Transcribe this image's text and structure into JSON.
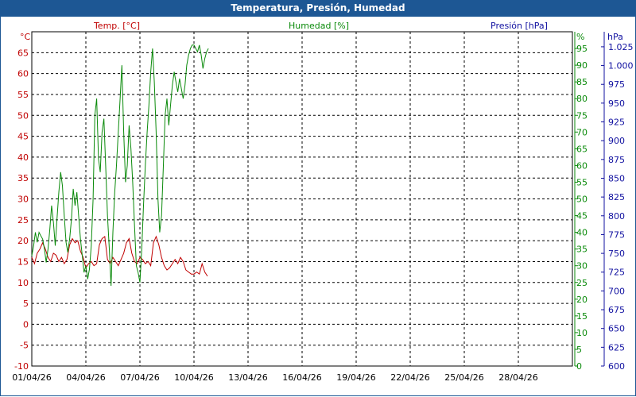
{
  "window": {
    "title": "Temperatura, Presión, Humedad"
  },
  "chart_data": {
    "type": "line",
    "grid": true,
    "x_ticks": [
      "01/04/26",
      "04/04/26",
      "07/04/26",
      "10/04/26",
      "13/04/26",
      "16/04/26",
      "19/04/26",
      "22/04/26",
      "25/04/26",
      "28/04/26"
    ],
    "x_range_days": [
      0,
      30
    ],
    "axes": {
      "temp": {
        "header": "Temp. [°C]",
        "unit": "°C",
        "color": "#c00000",
        "ylim": [
          -10,
          70
        ],
        "ticks": [
          "-10",
          "-5",
          "0",
          "5",
          "10",
          "15",
          "20",
          "25",
          "30",
          "35",
          "40",
          "45",
          "50",
          "55",
          "60",
          "65"
        ]
      },
      "hum": {
        "header": "Humedad [%]",
        "unit": "%",
        "color": "#0a8a0a",
        "ylim": [
          0,
          100
        ],
        "ticks": [
          "0",
          "5",
          "10",
          "15",
          "20",
          "25",
          "30",
          "35",
          "40",
          "45",
          "50",
          "55",
          "60",
          "65",
          "70",
          "75",
          "80",
          "85",
          "90",
          "95"
        ]
      },
      "pres": {
        "header": "Presión [hPa]",
        "unit": "hPa",
        "color": "#1010a0",
        "ylim": [
          600,
          1045
        ],
        "ticks": [
          "600",
          "625",
          "650",
          "675",
          "700",
          "725",
          "750",
          "775",
          "800",
          "825",
          "850",
          "875",
          "900",
          "925",
          "950",
          "975",
          "1.000",
          "1.025"
        ]
      }
    },
    "series": [
      {
        "axis": "temp",
        "color": "#c00000",
        "points": [
          [
            0.0,
            16.0
          ],
          [
            0.15,
            14.5
          ],
          [
            0.3,
            17.0
          ],
          [
            0.45,
            18.0
          ],
          [
            0.6,
            19.5
          ],
          [
            0.75,
            18.0
          ],
          [
            0.9,
            16.0
          ],
          [
            1.05,
            15.0
          ],
          [
            1.2,
            17.0
          ],
          [
            1.35,
            16.5
          ],
          [
            1.5,
            15.0
          ],
          [
            1.65,
            16.0
          ],
          [
            1.8,
            14.5
          ],
          [
            1.95,
            15.5
          ],
          [
            2.1,
            19.0
          ],
          [
            2.25,
            20.5
          ],
          [
            2.4,
            19.5
          ],
          [
            2.55,
            20.0
          ],
          [
            2.7,
            17.5
          ],
          [
            2.85,
            16.0
          ],
          [
            3.0,
            13.5
          ],
          [
            3.15,
            14.5
          ],
          [
            3.3,
            15.0
          ],
          [
            3.45,
            14.0
          ],
          [
            3.6,
            14.5
          ],
          [
            3.75,
            19.0
          ],
          [
            3.9,
            20.5
          ],
          [
            4.05,
            21.0
          ],
          [
            4.2,
            15.5
          ],
          [
            4.35,
            14.5
          ],
          [
            4.5,
            16.0
          ],
          [
            4.65,
            15.0
          ],
          [
            4.8,
            14.0
          ],
          [
            4.95,
            15.5
          ],
          [
            5.1,
            17.0
          ],
          [
            5.25,
            19.5
          ],
          [
            5.4,
            20.5
          ],
          [
            5.55,
            17.0
          ],
          [
            5.7,
            15.0
          ],
          [
            5.85,
            14.5
          ],
          [
            6.0,
            16.0
          ],
          [
            6.15,
            15.5
          ],
          [
            6.3,
            14.5
          ],
          [
            6.45,
            15.0
          ],
          [
            6.6,
            14.0
          ],
          [
            6.75,
            19.5
          ],
          [
            6.9,
            21.0
          ],
          [
            7.05,
            19.0
          ],
          [
            7.2,
            16.0
          ],
          [
            7.35,
            14.0
          ],
          [
            7.5,
            13.0
          ],
          [
            7.65,
            13.5
          ],
          [
            7.8,
            14.5
          ],
          [
            7.95,
            15.5
          ],
          [
            8.1,
            14.5
          ],
          [
            8.25,
            16.0
          ],
          [
            8.4,
            15.0
          ],
          [
            8.55,
            13.0
          ],
          [
            8.7,
            12.5
          ],
          [
            8.85,
            12.0
          ],
          [
            9.0,
            12.0
          ],
          [
            9.15,
            12.5
          ],
          [
            9.3,
            12.0
          ],
          [
            9.45,
            14.5
          ],
          [
            9.6,
            12.5
          ],
          [
            9.75,
            11.5
          ]
        ]
      },
      {
        "axis": "hum",
        "color": "#0a8a0a",
        "points": [
          [
            0.0,
            33
          ],
          [
            0.1,
            36
          ],
          [
            0.2,
            40
          ],
          [
            0.3,
            37
          ],
          [
            0.4,
            40
          ],
          [
            0.5,
            39
          ],
          [
            0.6,
            38
          ],
          [
            0.7,
            35
          ],
          [
            0.8,
            31
          ],
          [
            0.9,
            35
          ],
          [
            1.0,
            41
          ],
          [
            1.1,
            48
          ],
          [
            1.2,
            43
          ],
          [
            1.3,
            36
          ],
          [
            1.4,
            44
          ],
          [
            1.5,
            52
          ],
          [
            1.6,
            58
          ],
          [
            1.7,
            54
          ],
          [
            1.8,
            45
          ],
          [
            1.9,
            37
          ],
          [
            2.0,
            34
          ],
          [
            2.1,
            38
          ],
          [
            2.2,
            44
          ],
          [
            2.3,
            53
          ],
          [
            2.4,
            48
          ],
          [
            2.5,
            52
          ],
          [
            2.6,
            45
          ],
          [
            2.7,
            38
          ],
          [
            2.8,
            33
          ],
          [
            2.9,
            28
          ],
          [
            3.0,
            30
          ],
          [
            3.1,
            26
          ],
          [
            3.2,
            29
          ],
          [
            3.3,
            36
          ],
          [
            3.4,
            50
          ],
          [
            3.5,
            75
          ],
          [
            3.6,
            80
          ],
          [
            3.7,
            62
          ],
          [
            3.8,
            58
          ],
          [
            3.9,
            70
          ],
          [
            4.0,
            74
          ],
          [
            4.1,
            60
          ],
          [
            4.2,
            45
          ],
          [
            4.3,
            35
          ],
          [
            4.4,
            24
          ],
          [
            4.5,
            40
          ],
          [
            4.6,
            52
          ],
          [
            4.7,
            60
          ],
          [
            4.8,
            70
          ],
          [
            4.9,
            80
          ],
          [
            5.0,
            90
          ],
          [
            5.1,
            70
          ],
          [
            5.2,
            55
          ],
          [
            5.3,
            60
          ],
          [
            5.4,
            72
          ],
          [
            5.5,
            65
          ],
          [
            5.6,
            55
          ],
          [
            5.7,
            42
          ],
          [
            5.8,
            30
          ],
          [
            5.9,
            28
          ],
          [
            6.0,
            25
          ],
          [
            6.1,
            35
          ],
          [
            6.2,
            48
          ],
          [
            6.3,
            60
          ],
          [
            6.4,
            70
          ],
          [
            6.5,
            78
          ],
          [
            6.6,
            88
          ],
          [
            6.7,
            95
          ],
          [
            6.8,
            85
          ],
          [
            6.9,
            70
          ],
          [
            7.0,
            50
          ],
          [
            7.1,
            40
          ],
          [
            7.2,
            45
          ],
          [
            7.3,
            60
          ],
          [
            7.4,
            75
          ],
          [
            7.5,
            80
          ],
          [
            7.6,
            72
          ],
          [
            7.7,
            78
          ],
          [
            7.8,
            84
          ],
          [
            7.9,
            88
          ],
          [
            8.0,
            85
          ],
          [
            8.1,
            82
          ],
          [
            8.2,
            86
          ],
          [
            8.3,
            83
          ],
          [
            8.4,
            80
          ],
          [
            8.5,
            84
          ],
          [
            8.6,
            90
          ],
          [
            8.7,
            93
          ],
          [
            8.8,
            95
          ],
          [
            8.9,
            96
          ],
          [
            9.0,
            96
          ],
          [
            9.1,
            95
          ],
          [
            9.2,
            94
          ],
          [
            9.3,
            96
          ],
          [
            9.4,
            93
          ],
          [
            9.5,
            89
          ],
          [
            9.6,
            92
          ],
          [
            9.7,
            94
          ],
          [
            9.8,
            95
          ]
        ]
      }
    ]
  }
}
